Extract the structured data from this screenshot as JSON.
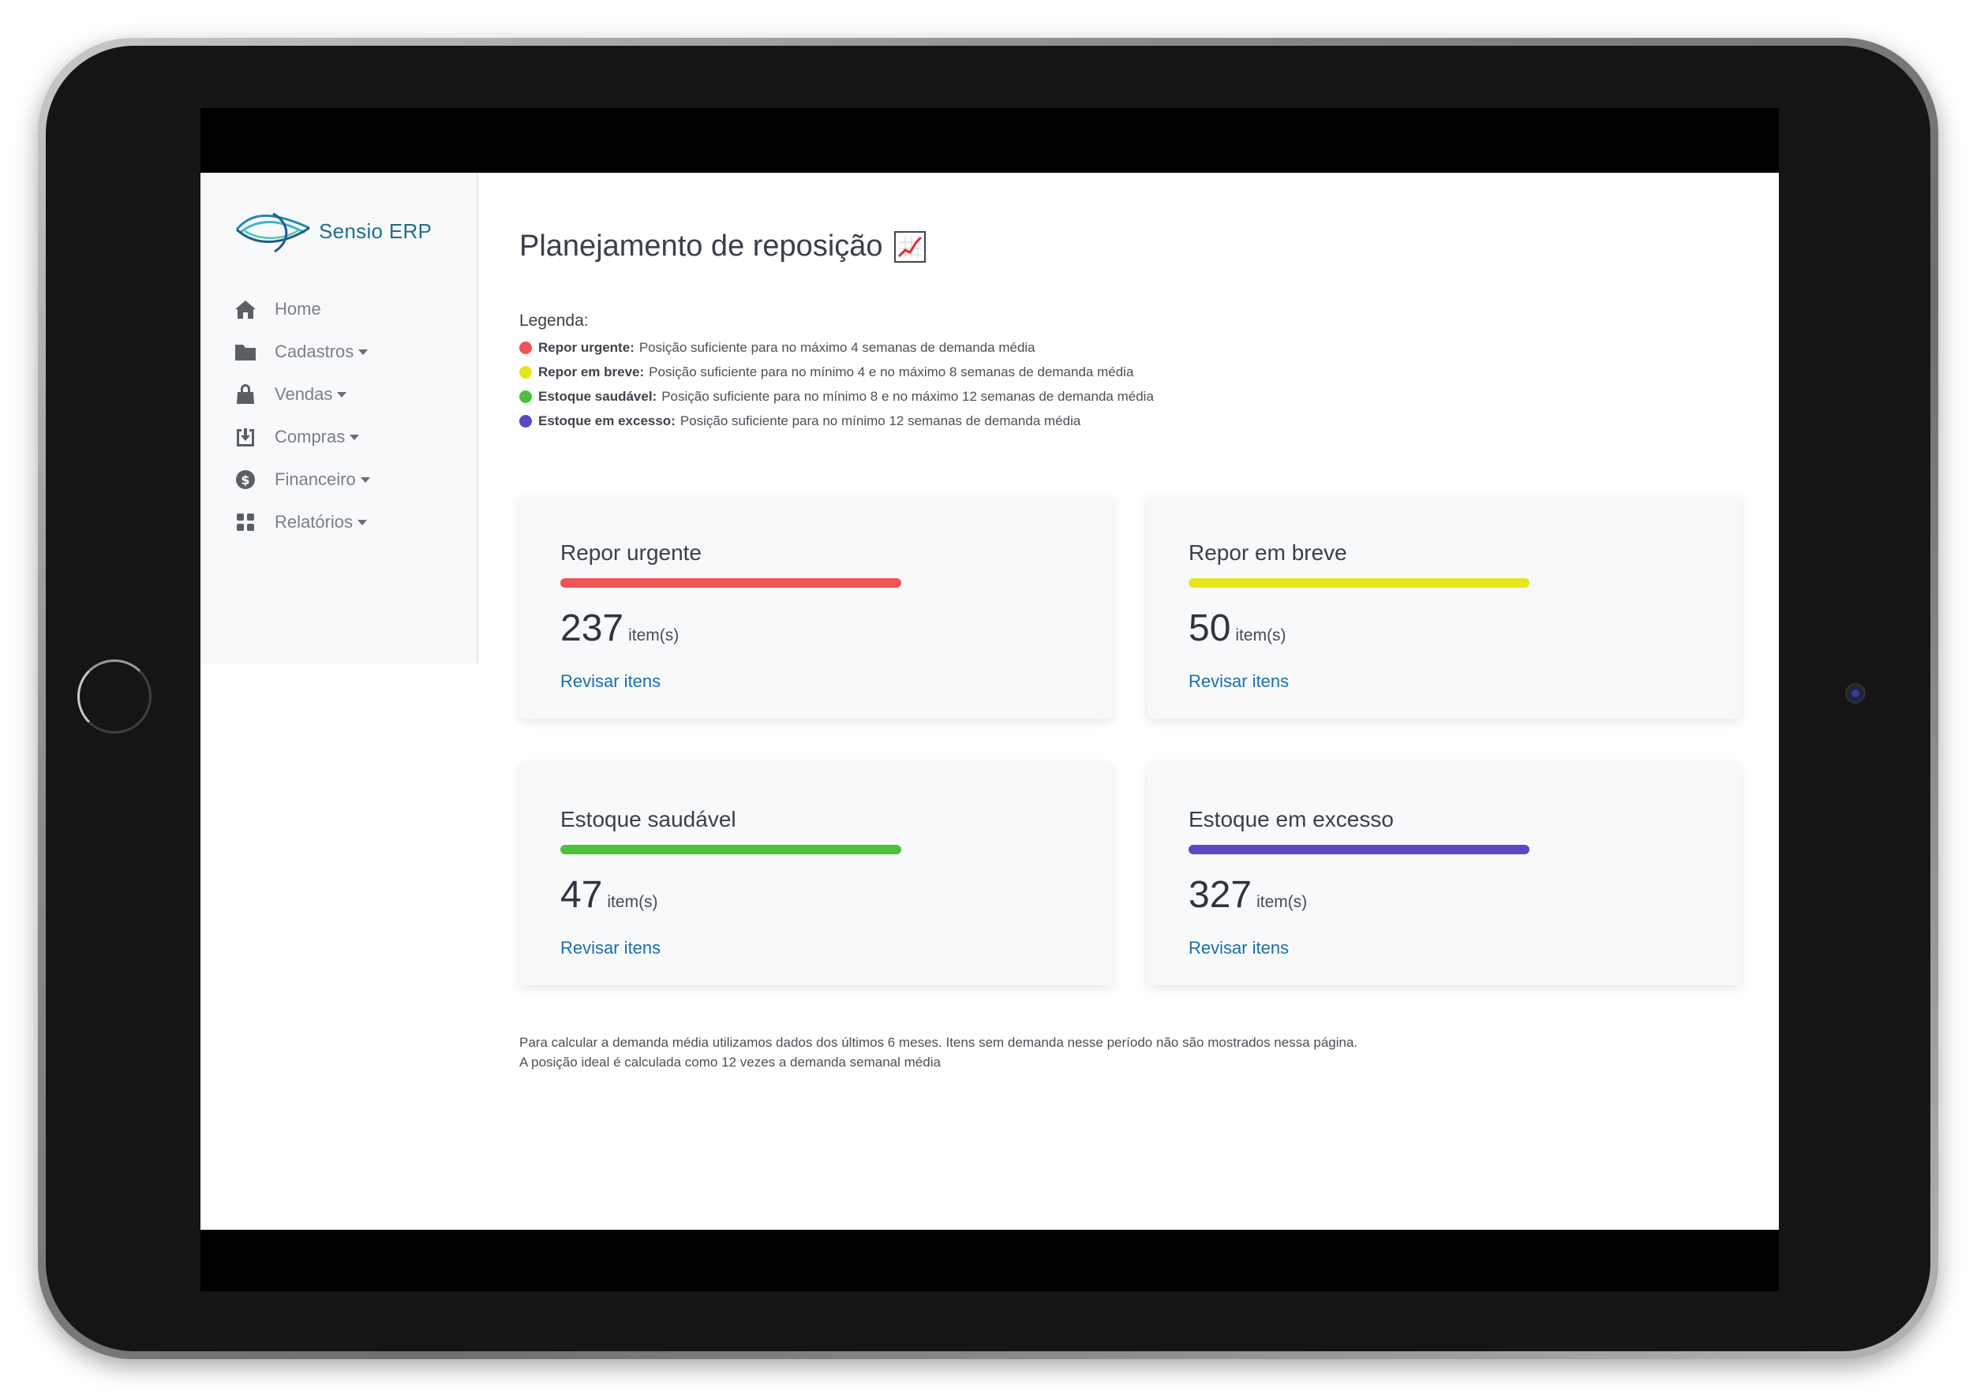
{
  "brand": {
    "name": "Sensio ERP"
  },
  "nav": {
    "items": [
      {
        "label": "Home",
        "icon": "home-icon",
        "has_dropdown": false
      },
      {
        "label": "Cadastros",
        "icon": "folder-icon",
        "has_dropdown": true
      },
      {
        "label": "Vendas",
        "icon": "bag-icon",
        "has_dropdown": true
      },
      {
        "label": "Compras",
        "icon": "download-box-icon",
        "has_dropdown": true
      },
      {
        "label": "Financeiro",
        "icon": "dollar-circle-icon",
        "has_dropdown": true
      },
      {
        "label": "Relatórios",
        "icon": "grid-icon",
        "has_dropdown": true
      }
    ]
  },
  "page": {
    "title": "Planejamento de reposição",
    "title_icon": "chart-increasing-icon"
  },
  "legend": {
    "title": "Legenda:",
    "items": [
      {
        "term": "Repor urgente:",
        "text": "Posição suficiente para no máximo 4 semanas de demanda média",
        "color": "#f05454"
      },
      {
        "term": "Repor em breve:",
        "text": "Posição suficiente para no mínimo 4 e no máximo 8 semanas de demanda média",
        "color": "#e6e619"
      },
      {
        "term": "Estoque saudável:",
        "text": "Posição suficiente para no mínimo 8 e no máximo 12 semanas de demanda média",
        "color": "#4cc23c"
      },
      {
        "term": "Estoque em excesso:",
        "text": "Posição suficiente para no mínimo 12 semanas de demanda média",
        "color": "#5a48c8"
      }
    ]
  },
  "cards": [
    {
      "title": "Repor urgente",
      "count": "237",
      "unit": "item(s)",
      "link": "Revisar itens",
      "color": "#f05454"
    },
    {
      "title": "Repor em breve",
      "count": "50",
      "unit": "item(s)",
      "link": "Revisar itens",
      "color": "#e6e619"
    },
    {
      "title": "Estoque saudável",
      "count": "47",
      "unit": "item(s)",
      "link": "Revisar itens",
      "color": "#4cc23c"
    },
    {
      "title": "Estoque em excesso",
      "count": "327",
      "unit": "item(s)",
      "link": "Revisar itens",
      "color": "#5a48c8"
    }
  ],
  "footnote": {
    "line1": "Para calcular a demanda média utilizamos dados dos últimos 6 meses. Itens sem demanda nesse período não são mostrados nessa página.",
    "line2": "A posição ideal é calculada como 12 vezes a demanda semanal média"
  }
}
